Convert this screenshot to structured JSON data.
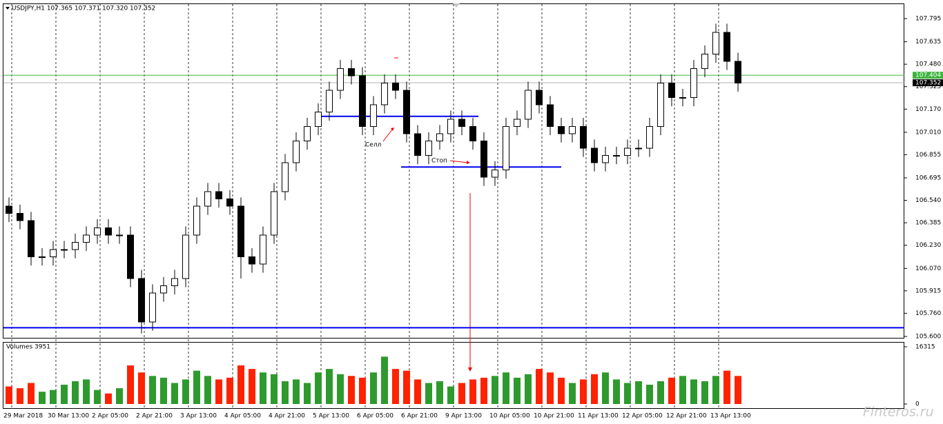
{
  "chart_data": {
    "type": "candlestick",
    "title": "USDJPY,H1 107.365 107.371 107.320 107.352",
    "volume_title": "Volumes 3951",
    "watermark": "Finteros.ru",
    "annotations": [
      "Селл",
      "Стоп"
    ],
    "open": [
      106.5,
      106.45,
      106.4,
      106.15,
      106.15,
      106.2,
      106.2,
      106.25,
      106.3,
      106.35,
      106.3,
      106.3,
      106.0,
      105.7,
      105.9,
      105.95,
      106.0,
      106.3,
      106.5,
      106.6,
      106.55,
      106.5,
      106.15,
      106.1,
      106.3,
      106.6,
      106.8,
      106.95,
      107.05,
      107.15,
      107.3,
      107.45,
      107.4,
      107.05,
      107.2,
      107.35,
      107.3,
      107.0,
      106.85,
      106.95,
      107.0,
      107.1,
      107.05,
      106.95,
      106.7,
      106.75,
      107.05,
      107.1,
      107.3,
      107.2,
      107.05,
      107.0,
      107.05,
      106.9,
      106.8,
      106.85,
      106.85,
      106.9,
      106.9,
      107.05,
      107.35,
      107.25,
      107.25,
      107.45,
      107.55,
      107.7,
      107.5
    ],
    "high": [
      106.56,
      106.51,
      106.46,
      106.21,
      106.26,
      106.26,
      106.31,
      106.36,
      106.41,
      106.41,
      106.36,
      106.36,
      106.06,
      105.96,
      106.01,
      106.06,
      106.36,
      106.56,
      106.66,
      106.66,
      106.61,
      106.56,
      106.21,
      106.36,
      106.66,
      106.86,
      107.01,
      107.11,
      107.21,
      107.36,
      107.51,
      107.51,
      107.46,
      107.26,
      107.41,
      107.41,
      107.36,
      107.06,
      107.01,
      107.06,
      107.16,
      107.16,
      107.11,
      107.01,
      106.81,
      107.11,
      107.16,
      107.36,
      107.36,
      107.26,
      107.11,
      107.11,
      107.11,
      106.96,
      106.91,
      106.91,
      106.96,
      106.96,
      107.11,
      107.41,
      107.41,
      107.31,
      107.51,
      107.61,
      107.76,
      107.76,
      107.56
    ],
    "low": [
      106.39,
      106.34,
      106.09,
      106.09,
      106.09,
      106.14,
      106.14,
      106.19,
      106.24,
      106.24,
      106.24,
      105.94,
      105.62,
      105.64,
      105.84,
      105.89,
      105.94,
      106.24,
      106.44,
      106.49,
      106.44,
      106.0,
      106.04,
      106.04,
      106.24,
      106.54,
      106.74,
      106.89,
      106.99,
      107.09,
      107.24,
      107.34,
      106.99,
      106.99,
      107.14,
      107.24,
      106.94,
      106.79,
      106.79,
      106.89,
      106.94,
      106.99,
      106.89,
      106.64,
      106.64,
      106.69,
      106.99,
      107.04,
      107.14,
      106.99,
      106.94,
      106.94,
      106.84,
      106.74,
      106.74,
      106.79,
      106.79,
      106.84,
      106.84,
      106.99,
      107.19,
      107.19,
      107.19,
      107.39,
      107.49,
      107.44,
      107.29
    ],
    "close": [
      106.45,
      106.4,
      106.15,
      106.15,
      106.2,
      106.2,
      106.25,
      106.3,
      106.35,
      106.3,
      106.3,
      106.0,
      105.7,
      105.9,
      105.95,
      106.0,
      106.3,
      106.5,
      106.6,
      106.55,
      106.5,
      106.15,
      106.1,
      106.3,
      106.6,
      106.8,
      106.95,
      107.05,
      107.15,
      107.3,
      107.45,
      107.4,
      107.05,
      107.2,
      107.35,
      107.3,
      107.0,
      106.85,
      106.95,
      107.0,
      107.1,
      107.05,
      106.95,
      106.7,
      106.75,
      107.05,
      107.1,
      107.3,
      107.2,
      107.05,
      107.0,
      107.05,
      106.9,
      106.8,
      106.85,
      106.85,
      106.9,
      106.9,
      107.05,
      107.35,
      107.25,
      107.25,
      107.45,
      107.55,
      107.7,
      107.5,
      107.35
    ],
    "volumes": [
      5000,
      4500,
      6000,
      3500,
      4000,
      5500,
      6500,
      7000,
      4000,
      3000,
      4500,
      11000,
      9000,
      8000,
      7500,
      6000,
      7000,
      9500,
      8000,
      7000,
      7500,
      11000,
      10000,
      9000,
      8500,
      6500,
      7000,
      6000,
      9000,
      10000,
      8500,
      8000,
      7500,
      9000,
      13500,
      10000,
      9500,
      7000,
      6000,
      6500,
      5000,
      6000,
      7000,
      7500,
      8000,
      9000,
      7500,
      8500,
      10000,
      9000,
      7500,
      6000,
      7000,
      8500,
      9000,
      7000,
      6000,
      6500,
      5500,
      6500,
      7500,
      8000,
      7000,
      6500,
      8000,
      9500,
      8000
    ],
    "up_color": "#2e9a2e",
    "down_color": "#ff2200",
    "ylim": [
      105.6,
      107.795
    ],
    "yticks": [
      107.795,
      107.635,
      {
        "value": 107.48,
        "label": "107.480"
      },
      107.325,
      {
        "value": 107.17,
        "label": "107.170"
      },
      {
        "value": 107.01,
        "label": "107.010"
      },
      106.855,
      106.695,
      {
        "value": 106.54,
        "label": "106.540"
      },
      106.385,
      {
        "value": 106.23,
        "label": "106.230"
      },
      {
        "value": 106.07,
        "label": "106.070"
      },
      105.915,
      {
        "value": 105.76,
        "label": "105.760"
      },
      {
        "value": 105.6,
        "label": "105.600"
      }
    ],
    "vlim": [
      0,
      16315
    ],
    "vticks": [
      16315,
      0
    ],
    "xticks": [
      {
        "value": 0,
        "label": "29 Mar 2018"
      },
      {
        "value": 4,
        "label": "30 Mar 13:00"
      },
      {
        "value": 8,
        "label": "2 Apr 05:00"
      },
      {
        "value": 12,
        "label": "2 Apr 21:00"
      },
      {
        "value": 16,
        "label": "3 Apr 13:00"
      },
      {
        "value": 20,
        "label": "4 Apr 05:00"
      },
      {
        "value": 24,
        "label": "4 Apr 21:00"
      },
      {
        "value": 28,
        "label": "5 Apr 13:00"
      },
      {
        "value": 32,
        "label": "6 Apr 05:00"
      },
      {
        "value": 36,
        "label": "6 Apr 21:00"
      },
      {
        "value": 40,
        "label": "9 Apr 13:00"
      },
      {
        "value": 44,
        "label": "10 Apr 05:00"
      },
      {
        "value": 48,
        "label": "10 Apr 21:00"
      },
      {
        "value": 52,
        "label": "11 Apr 13:00"
      },
      {
        "value": 56,
        "label": "12 Apr 05:00"
      },
      {
        "value": 60,
        "label": "12 Apr 21:00"
      },
      {
        "value": 64,
        "label": "13 Apr 13:00"
      }
    ],
    "price_lines": [
      {
        "value": 107.404,
        "color": "#3cb43c"
      },
      {
        "value": 107.352,
        "color": "#b0b0b0"
      }
    ],
    "levels": [
      {
        "value": 105.66,
        "color": "#0000ee"
      },
      {
        "value": 107.12,
        "from": 28.75,
        "to": 43,
        "color": "#0000ee"
      },
      {
        "value": 106.77,
        "from": 36,
        "to": 50.5,
        "color": "#0000ee"
      }
    ]
  }
}
